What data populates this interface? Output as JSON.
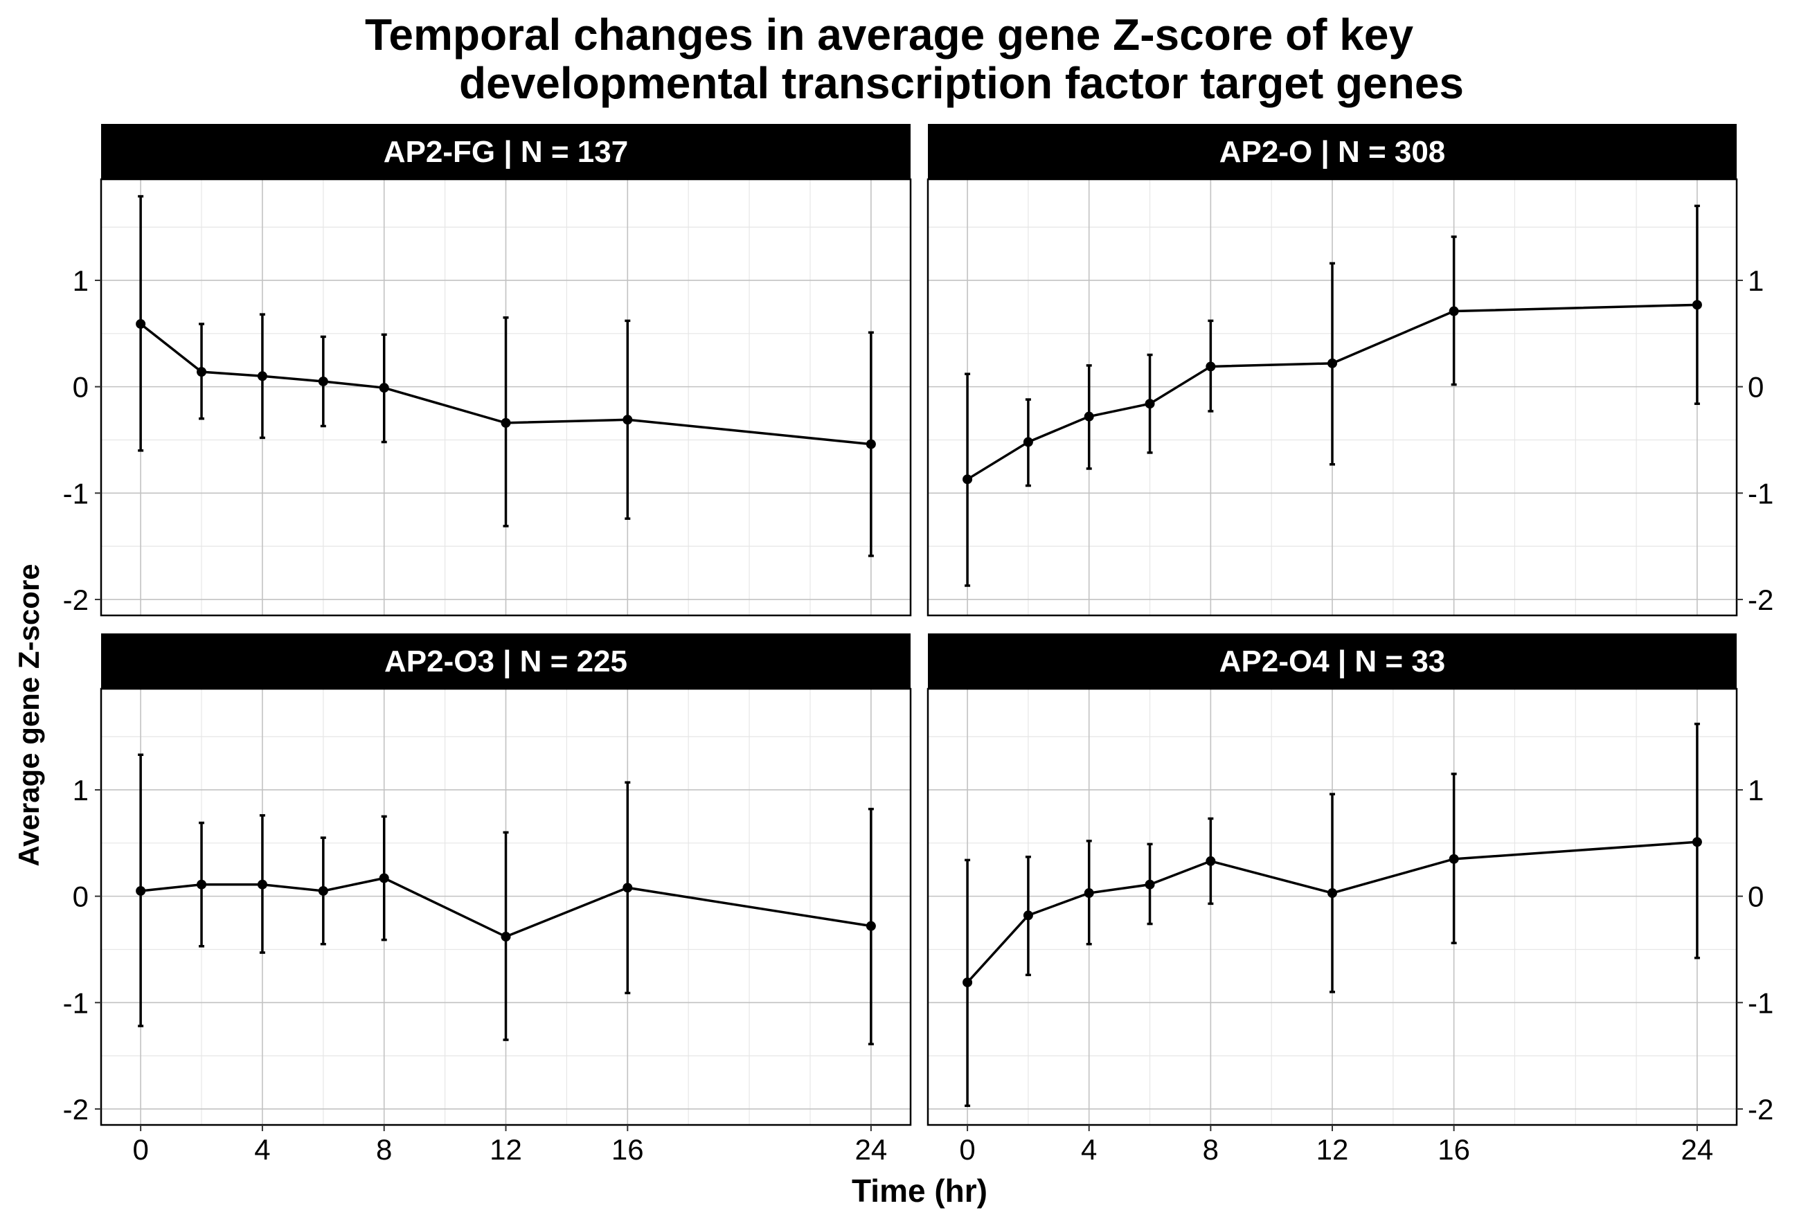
{
  "figure": {
    "title_line_1": "Temporal changes in average gene Z-score of key",
    "title_line_2": "developmental transcription factor target genes",
    "xlabel": "Time (hr)",
    "ylabel": "Average gene Z-score"
  },
  "chart_data": {
    "type": "line",
    "title": "Temporal changes in average gene Z-score of key developmental transcription factor target genes",
    "xlabel": "Time (hr)",
    "ylabel": "Average gene Z-score",
    "x_ticks": [
      0,
      4,
      8,
      12,
      16,
      24
    ],
    "y_ticks": [
      1,
      0,
      -1,
      -2
    ],
    "xlim": [
      -1.3,
      25.3
    ],
    "ylim": [
      -2.15,
      1.95
    ],
    "grid": true,
    "error_bars": true,
    "panels": [
      {
        "label": "AP2-FG  | N =  137",
        "x": [
          0,
          2,
          4,
          6,
          8,
          12,
          16,
          24
        ],
        "y": [
          0.59,
          0.14,
          0.1,
          0.05,
          -0.01,
          -0.34,
          -0.31,
          -0.54
        ],
        "err_low": [
          -0.6,
          -0.3,
          -0.48,
          -0.37,
          -0.52,
          -1.31,
          -1.24,
          -1.59
        ],
        "err_high": [
          1.79,
          0.59,
          0.68,
          0.47,
          0.49,
          0.65,
          0.62,
          0.51
        ]
      },
      {
        "label": "AP2-O  | N =  308",
        "x": [
          0,
          2,
          4,
          6,
          8,
          12,
          16,
          24
        ],
        "y": [
          -0.87,
          -0.52,
          -0.28,
          -0.16,
          0.19,
          0.22,
          0.71,
          0.77
        ],
        "err_low": [
          -1.87,
          -0.93,
          -0.77,
          -0.62,
          -0.23,
          -0.73,
          0.02,
          -0.16
        ],
        "err_high": [
          0.12,
          -0.12,
          0.2,
          0.3,
          0.62,
          1.16,
          1.41,
          1.7
        ]
      },
      {
        "label": "AP2-O3  | N =  225",
        "x": [
          0,
          2,
          4,
          6,
          8,
          12,
          16,
          24
        ],
        "y": [
          0.05,
          0.11,
          0.11,
          0.05,
          0.17,
          -0.38,
          0.08,
          -0.28
        ],
        "err_low": [
          -1.22,
          -0.47,
          -0.53,
          -0.45,
          -0.41,
          -1.35,
          -0.91,
          -1.39
        ],
        "err_high": [
          1.33,
          0.69,
          0.76,
          0.55,
          0.75,
          0.6,
          1.07,
          0.82
        ]
      },
      {
        "label": "AP2-O4  | N =  33",
        "x": [
          0,
          2,
          4,
          6,
          8,
          12,
          16,
          24
        ],
        "y": [
          -0.81,
          -0.18,
          0.03,
          0.11,
          0.33,
          0.03,
          0.35,
          0.51
        ],
        "err_low": [
          -1.97,
          -0.74,
          -0.45,
          -0.26,
          -0.07,
          -0.9,
          -0.44,
          -0.58
        ],
        "err_high": [
          0.34,
          0.37,
          0.52,
          0.49,
          0.73,
          0.96,
          1.15,
          1.62
        ]
      }
    ]
  }
}
